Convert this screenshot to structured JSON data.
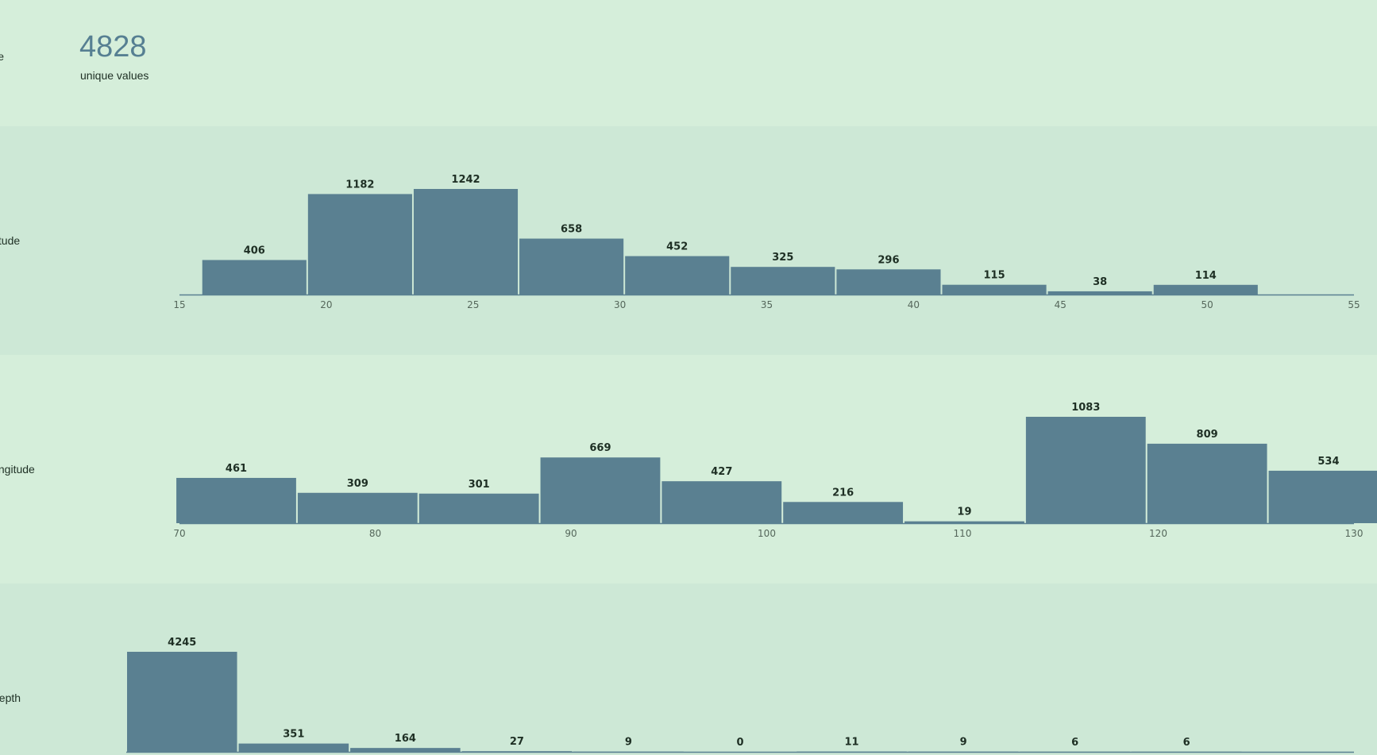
{
  "fields": [
    {
      "label": "name",
      "kind": "count",
      "count": "4828",
      "caption": "unique values"
    },
    {
      "label": "latitude",
      "kind": "histogram"
    },
    {
      "label": "longitude",
      "kind": "histogram"
    },
    {
      "label": "depth",
      "kind": "histogram"
    }
  ],
  "chart_data": [
    {
      "type": "bar",
      "field": "latitude",
      "bins": [
        {
          "x0": 15.75,
          "x1": 19.35,
          "value": 406
        },
        {
          "x0": 19.35,
          "x1": 22.95,
          "value": 1182
        },
        {
          "x0": 22.95,
          "x1": 26.55,
          "value": 1242
        },
        {
          "x0": 26.55,
          "x1": 30.15,
          "value": 658
        },
        {
          "x0": 30.15,
          "x1": 33.75,
          "value": 452
        },
        {
          "x0": 33.75,
          "x1": 37.35,
          "value": 325
        },
        {
          "x0": 37.35,
          "x1": 40.95,
          "value": 296
        },
        {
          "x0": 40.95,
          "x1": 44.55,
          "value": 115
        },
        {
          "x0": 44.55,
          "x1": 48.15,
          "value": 38
        },
        {
          "x0": 48.15,
          "x1": 51.75,
          "value": 114
        }
      ],
      "xlim": [
        15,
        55
      ],
      "ticks": [
        "15",
        "20",
        "25",
        "30",
        "35",
        "40",
        "45",
        "50",
        "55"
      ],
      "ylim": [
        0,
        1242
      ]
    },
    {
      "type": "bar",
      "field": "longitude",
      "bins": [
        {
          "x0": 69.8,
          "x1": 76.0,
          "value": 461
        },
        {
          "x0": 76.0,
          "x1": 82.2,
          "value": 309
        },
        {
          "x0": 82.2,
          "x1": 88.4,
          "value": 301
        },
        {
          "x0": 88.4,
          "x1": 94.6,
          "value": 669
        },
        {
          "x0": 94.6,
          "x1": 100.8,
          "value": 427
        },
        {
          "x0": 100.8,
          "x1": 107.0,
          "value": 216
        },
        {
          "x0": 107.0,
          "x1": 113.2,
          "value": 19
        },
        {
          "x0": 113.2,
          "x1": 119.4,
          "value": 1083
        },
        {
          "x0": 119.4,
          "x1": 125.6,
          "value": 809
        },
        {
          "x0": 125.6,
          "x1": 131.8,
          "value": 534
        }
      ],
      "xlim": [
        70,
        130
      ],
      "ticks": [
        "70",
        "80",
        "90",
        "100",
        "110",
        "120",
        "130"
      ],
      "ylim": [
        0,
        1083
      ]
    },
    {
      "type": "bar",
      "field": "depth",
      "bins": [
        {
          "x0": 0,
          "x1": 1,
          "value": 4245
        },
        {
          "x0": 1,
          "x1": 2,
          "value": 351
        },
        {
          "x0": 2,
          "x1": 3,
          "value": 164
        },
        {
          "x0": 3,
          "x1": 4,
          "value": 27
        },
        {
          "x0": 4,
          "x1": 5,
          "value": 9
        },
        {
          "x0": 5,
          "x1": 6,
          "value": 0
        },
        {
          "x0": 6,
          "x1": 7,
          "value": 11
        },
        {
          "x0": 7,
          "x1": 8,
          "value": 9
        },
        {
          "x0": 8,
          "x1": 9,
          "value": 6
        },
        {
          "x0": 9,
          "x1": 10,
          "value": 6
        }
      ],
      "xlim": [
        0,
        11
      ],
      "ticks": [],
      "ylim": [
        0,
        4245
      ]
    }
  ]
}
